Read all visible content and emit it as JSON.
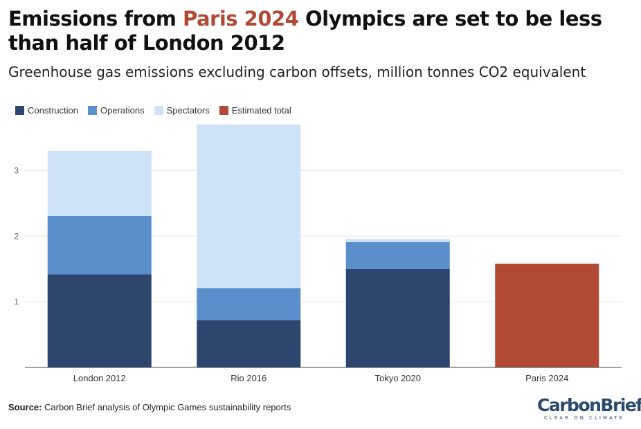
{
  "title": {
    "part1": "Emissions from ",
    "highlight": "Paris 2024",
    "part2": " Olympics are set to be less than half of London 2012"
  },
  "subtitle": "Greenhouse gas emissions excluding carbon offsets, million tonnes CO2 equivalent",
  "colors": {
    "construction": "#2c466e",
    "operations": "#5a8fcb",
    "spectators": "#cfe3f6",
    "estimated_total": "#b14a35",
    "title_highlight": "#b14a35"
  },
  "legend": [
    {
      "label": "Construction",
      "color": "#2c466e"
    },
    {
      "label": "Operations",
      "color": "#5a8fcb"
    },
    {
      "label": "Spectators",
      "color": "#cfe3f6"
    },
    {
      "label": "Estimated total",
      "color": "#b14a35"
    }
  ],
  "chart_data": {
    "type": "bar",
    "stacked": true,
    "categories": [
      "London 2012",
      "Rio 2016",
      "Tokyo 2020",
      "Paris 2024"
    ],
    "series": [
      {
        "name": "Construction",
        "values": [
          1.42,
          0.72,
          1.5,
          0
        ]
      },
      {
        "name": "Operations",
        "values": [
          0.89,
          0.49,
          0.41,
          0
        ]
      },
      {
        "name": "Spectators",
        "values": [
          0.99,
          2.49,
          0.05,
          0
        ]
      },
      {
        "name": "Estimated total",
        "values": [
          0,
          0,
          0,
          1.58
        ]
      }
    ],
    "yticks": [
      "1",
      "2",
      "3"
    ],
    "ylim": [
      0,
      3.7
    ],
    "grid": true,
    "legend_position": "top-left",
    "xlabel": "",
    "ylabel": ""
  },
  "source": {
    "label": "Source:",
    "text": " Carbon Brief analysis of Olympic Games sustainability reports"
  },
  "logo": {
    "name": "CarbonBrief",
    "tagline": "CLEAR ON CLIMATE"
  }
}
